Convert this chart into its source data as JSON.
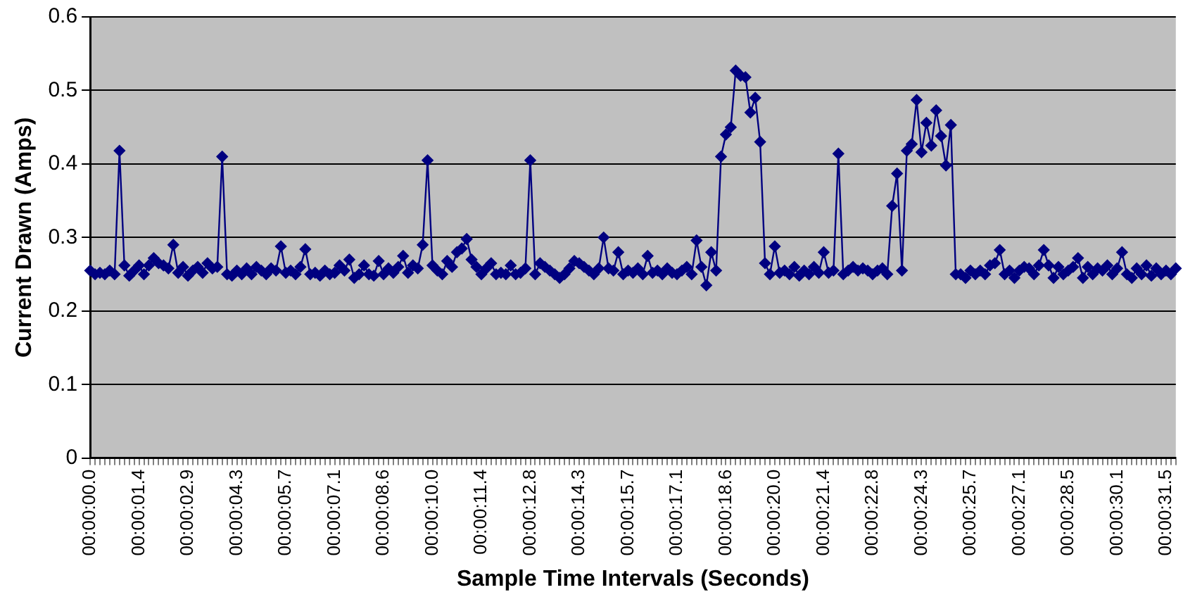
{
  "chart_data": {
    "type": "line",
    "xlabel": "Sample Time Intervals (Seconds)",
    "ylabel": "Current Drawn (Amps)",
    "ylim": [
      0,
      0.6
    ],
    "yticks": [
      0,
      0.1,
      0.2,
      0.3,
      0.4,
      0.5,
      0.6
    ],
    "grid": "y",
    "legend": false,
    "marker": "diamond",
    "line_style": "solid",
    "categories": [
      "00:00:00.0",
      null,
      null,
      null,
      null,
      null,
      null,
      null,
      null,
      null,
      "00:00:01.4",
      null,
      null,
      null,
      null,
      null,
      null,
      null,
      null,
      null,
      "00:00:02.9",
      null,
      null,
      null,
      null,
      null,
      null,
      null,
      null,
      null,
      "00:00:04.3",
      null,
      null,
      null,
      null,
      null,
      null,
      null,
      null,
      null,
      "00:00:05.7",
      null,
      null,
      null,
      null,
      null,
      null,
      null,
      null,
      null,
      "00:00:07.1",
      null,
      null,
      null,
      null,
      null,
      null,
      null,
      null,
      null,
      "00:00:08.6",
      null,
      null,
      null,
      null,
      null,
      null,
      null,
      null,
      null,
      "00:00:10.0",
      null,
      null,
      null,
      null,
      null,
      null,
      null,
      null,
      null,
      "00:00:11.4",
      null,
      null,
      null,
      null,
      null,
      null,
      null,
      null,
      null,
      "00:00:12.8",
      null,
      null,
      null,
      null,
      null,
      null,
      null,
      null,
      null,
      "00:00:14.3",
      null,
      null,
      null,
      null,
      null,
      null,
      null,
      null,
      null,
      "00:00:15.7",
      null,
      null,
      null,
      null,
      null,
      null,
      null,
      null,
      null,
      "00:00:17.1",
      null,
      null,
      null,
      null,
      null,
      null,
      null,
      null,
      null,
      "00:00:18.6",
      null,
      null,
      null,
      null,
      null,
      null,
      null,
      null,
      null,
      "00:00:20.0",
      null,
      null,
      null,
      null,
      null,
      null,
      null,
      null,
      null,
      "00:00:21.4",
      null,
      null,
      null,
      null,
      null,
      null,
      null,
      null,
      null,
      "00:00:22.8",
      null,
      null,
      null,
      null,
      null,
      null,
      null,
      null,
      null,
      "00:00:24.3",
      null,
      null,
      null,
      null,
      null,
      null,
      null,
      null,
      null,
      "00:00:25.7",
      null,
      null,
      null,
      null,
      null,
      null,
      null,
      null,
      null,
      "00:00:27.1",
      null,
      null,
      null,
      null,
      null,
      null,
      null,
      null,
      null,
      "00:00:28.5",
      null,
      null,
      null,
      null,
      null,
      null,
      null,
      null,
      null,
      "00:00:30.1",
      null,
      null,
      null,
      null,
      null,
      null,
      null,
      null,
      null,
      "00:00:31.5",
      null,
      null
    ],
    "series": [
      {
        "color": "#000080",
        "values": [
          0.255,
          0.25,
          0.252,
          0.25,
          0.255,
          0.25,
          0.418,
          0.262,
          0.248,
          0.255,
          0.262,
          0.25,
          0.262,
          0.272,
          0.265,
          0.262,
          0.258,
          0.29,
          0.252,
          0.26,
          0.248,
          0.255,
          0.26,
          0.252,
          0.265,
          0.258,
          0.26,
          0.41,
          0.25,
          0.248,
          0.255,
          0.25,
          0.258,
          0.25,
          0.26,
          0.255,
          0.25,
          0.258,
          0.255,
          0.288,
          0.252,
          0.255,
          0.25,
          0.26,
          0.284,
          0.25,
          0.252,
          0.248,
          0.255,
          0.25,
          0.252,
          0.262,
          0.255,
          0.27,
          0.245,
          0.25,
          0.262,
          0.25,
          0.248,
          0.268,
          0.25,
          0.258,
          0.252,
          0.26,
          0.275,
          0.252,
          0.262,
          0.258,
          0.29,
          0.405,
          0.262,
          0.255,
          0.25,
          0.268,
          0.26,
          0.28,
          0.285,
          0.298,
          0.27,
          0.26,
          0.25,
          0.258,
          0.265,
          0.25,
          0.252,
          0.25,
          0.262,
          0.25,
          0.252,
          0.258,
          0.405,
          0.25,
          0.265,
          0.26,
          0.255,
          0.25,
          0.245,
          0.25,
          0.258,
          0.268,
          0.265,
          0.26,
          0.255,
          0.25,
          0.258,
          0.3,
          0.258,
          0.255,
          0.28,
          0.25,
          0.255,
          0.252,
          0.258,
          0.25,
          0.275,
          0.252,
          0.255,
          0.25,
          0.258,
          0.252,
          0.25,
          0.255,
          0.26,
          0.25,
          0.296,
          0.26,
          0.235,
          0.28,
          0.255,
          0.41,
          0.44,
          0.45,
          0.527,
          0.52,
          0.518,
          0.47,
          0.49,
          0.43,
          0.265,
          0.25,
          0.288,
          0.252,
          0.255,
          0.25,
          0.26,
          0.248,
          0.255,
          0.25,
          0.26,
          0.252,
          0.28,
          0.252,
          0.255,
          0.414,
          0.25,
          0.255,
          0.26,
          0.255,
          0.258,
          0.255,
          0.25,
          0.255,
          0.258,
          0.25,
          0.343,
          0.387,
          0.255,
          0.418,
          0.427,
          0.487,
          0.416,
          0.456,
          0.425,
          0.473,
          0.438,
          0.398,
          0.453,
          0.25,
          0.25,
          0.245,
          0.255,
          0.25,
          0.255,
          0.25,
          0.262,
          0.265,
          0.283,
          0.25,
          0.255,
          0.245,
          0.255,
          0.26,
          0.258,
          0.25,
          0.262,
          0.283,
          0.262,
          0.245,
          0.26,
          0.25,
          0.255,
          0.26,
          0.272,
          0.245,
          0.26,
          0.25,
          0.258,
          0.255,
          0.262,
          0.25,
          0.258,
          0.28,
          0.25,
          0.245,
          0.258,
          0.25,
          0.262,
          0.248,
          0.258,
          0.25,
          0.255,
          0.25,
          0.258
        ]
      }
    ]
  }
}
